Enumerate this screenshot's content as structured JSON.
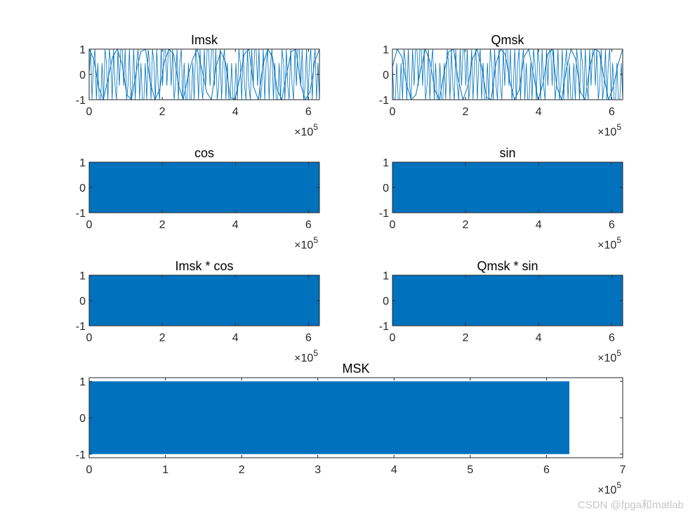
{
  "figure": {
    "watermark": "CSDN @fpga和matlab",
    "series_color": "#0072BD",
    "axis_color": "#262626",
    "background_color": "#ffffff"
  },
  "chart_data": [
    {
      "id": "imsk",
      "type": "line",
      "title": "Imsk",
      "xlabel": "",
      "ylabel": "",
      "xlim": [
        0,
        6.3
      ],
      "xticks": [
        0,
        2,
        4,
        6
      ],
      "ylim": [
        -1,
        1
      ],
      "yticks": [
        -1,
        0,
        1
      ],
      "x_exponent": "×10^5",
      "series": [
        {
          "name": "Imsk",
          "x_range": [
            0,
            6.3
          ],
          "values": [
            1,
            0.6,
            -0.5,
            -1,
            -0.2,
            0.7,
            1,
            0.4,
            -0.8,
            -1,
            0.1,
            0.9,
            1,
            -0.3,
            -1,
            -0.6,
            0.5,
            1,
            0.8,
            -0.4,
            -1,
            -0.1,
            0.6,
            1,
            0.2,
            -0.7,
            -1,
            0.3,
            0.9,
            0.5,
            -0.9,
            -1,
            -0.2,
            0.8,
            1,
            -0.5,
            -1,
            0.4,
            1,
            0.7,
            -0.6,
            -1,
            0,
            0.9,
            1,
            -0.4,
            -1,
            -0.7,
            0.5,
            1
          ]
        }
      ]
    },
    {
      "id": "qmsk",
      "type": "line",
      "title": "Qmsk",
      "xlabel": "",
      "ylabel": "",
      "xlim": [
        0,
        6.3
      ],
      "xticks": [
        0,
        2,
        4,
        6
      ],
      "ylim": [
        -1,
        1
      ],
      "yticks": [
        -1,
        0,
        1
      ],
      "x_exponent": "×10^5",
      "series": [
        {
          "name": "Qmsk",
          "x_range": [
            0,
            6.3
          ],
          "values": [
            0.3,
            1,
            0.7,
            -0.4,
            -1,
            -0.8,
            0.2,
            1,
            0.5,
            -0.6,
            -1,
            0.1,
            0.9,
            1,
            -0.2,
            -1,
            -0.5,
            0.6,
            1,
            0.3,
            -0.9,
            -1,
            0.4,
            1,
            0.8,
            -0.3,
            -1,
            -0.6,
            0.7,
            1,
            0,
            -1,
            -0.4,
            0.8,
            1,
            -0.5,
            -1,
            0.2,
            1,
            0.6,
            -0.7,
            -1,
            0.3,
            1,
            0.9,
            -0.1,
            -1,
            -0.5,
            0.4,
            1
          ]
        }
      ]
    },
    {
      "id": "cos",
      "type": "area",
      "title": "cos",
      "xlabel": "",
      "ylabel": "",
      "xlim": [
        0,
        6.3
      ],
      "xticks": [
        0,
        2,
        4,
        6
      ],
      "ylim": [
        -1,
        1
      ],
      "yticks": [
        -1,
        0,
        1
      ],
      "x_exponent": "×10^5",
      "series": [
        {
          "name": "cos",
          "x_range": [
            0,
            6.3
          ],
          "envelope": [
            -1,
            1
          ]
        }
      ]
    },
    {
      "id": "sin",
      "type": "area",
      "title": "sin",
      "xlabel": "",
      "ylabel": "",
      "xlim": [
        0,
        6.3
      ],
      "xticks": [
        0,
        2,
        4,
        6
      ],
      "ylim": [
        -1,
        1
      ],
      "yticks": [
        -1,
        0,
        1
      ],
      "x_exponent": "×10^5",
      "series": [
        {
          "name": "sin",
          "x_range": [
            0,
            6.3
          ],
          "envelope": [
            -1,
            1
          ]
        }
      ]
    },
    {
      "id": "imsk_cos",
      "type": "area",
      "title": "Imsk * cos",
      "xlabel": "",
      "ylabel": "",
      "xlim": [
        0,
        6.3
      ],
      "xticks": [
        0,
        2,
        4,
        6
      ],
      "ylim": [
        -1,
        1
      ],
      "yticks": [
        -1,
        0,
        1
      ],
      "x_exponent": "×10^5",
      "series": [
        {
          "name": "Imsk * cos",
          "x_range": [
            0,
            6.3
          ],
          "envelope": [
            -1,
            1
          ]
        }
      ]
    },
    {
      "id": "qmsk_sin",
      "type": "area",
      "title": "Qmsk * sin",
      "xlabel": "",
      "ylabel": "",
      "xlim": [
        0,
        6.3
      ],
      "xticks": [
        0,
        2,
        4,
        6
      ],
      "ylim": [
        -1,
        1
      ],
      "yticks": [
        -1,
        0,
        1
      ],
      "x_exponent": "×10^5",
      "series": [
        {
          "name": "Qmsk * sin",
          "x_range": [
            0,
            6.3
          ],
          "envelope": [
            -1,
            1
          ]
        }
      ]
    },
    {
      "id": "msk",
      "type": "area",
      "title": "MSK",
      "xlabel": "",
      "ylabel": "",
      "xlim": [
        0,
        7
      ],
      "xticks": [
        0,
        1,
        2,
        3,
        4,
        5,
        6,
        7
      ],
      "ylim": [
        -1.1,
        1.1
      ],
      "yticks": [
        -1,
        0,
        1
      ],
      "x_exponent": "×10^5",
      "series": [
        {
          "name": "MSK",
          "x_range": [
            0,
            6.3
          ],
          "envelope": [
            -1,
            1
          ]
        }
      ]
    }
  ]
}
